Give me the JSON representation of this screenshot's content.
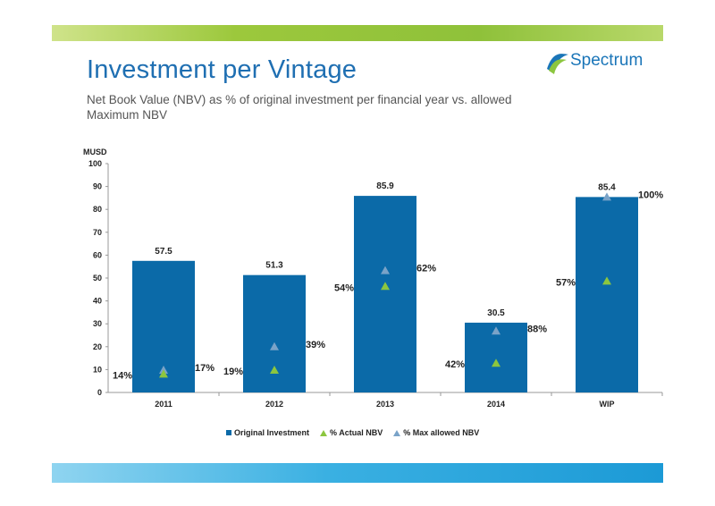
{
  "header": {
    "title": "Investment per Vintage",
    "subtitle": "Net Book Value (NBV) as % of original investment per financial year vs. allowed Maximum NBV",
    "logo_text": "Spectrum"
  },
  "colors": {
    "bar": "#0b6aa8",
    "actual_marker": "#8cc63f",
    "max_marker": "#7aa3c8",
    "title": "#1f6fb2",
    "top_band": "#8fc13a",
    "bottom_band": "#3ab0e2"
  },
  "chart_data": {
    "type": "bar",
    "unit_label": "MUSD",
    "categories": [
      "2011",
      "2012",
      "2013",
      "2014",
      "WIP"
    ],
    "ylim": [
      0,
      100
    ],
    "yticks": [
      0,
      10,
      20,
      30,
      40,
      50,
      60,
      70,
      80,
      90,
      100
    ],
    "grid": false,
    "legend_position": "bottom",
    "series": [
      {
        "name": "Original Investment",
        "type": "bar",
        "values": [
          57.5,
          51.3,
          85.9,
          30.5,
          85.4
        ],
        "labels": [
          "57.5",
          "51.3",
          "85.9",
          "30.5",
          "85.4"
        ]
      },
      {
        "name": "% Actual NBV",
        "type": "marker",
        "percent": [
          14,
          19,
          54,
          42,
          57
        ],
        "labels": [
          "14%",
          "19%",
          "54%",
          "42%",
          "57%"
        ]
      },
      {
        "name": "% Max allowed NBV",
        "type": "marker",
        "percent": [
          17,
          39,
          62,
          88,
          100
        ],
        "labels": [
          "17%",
          "39%",
          "62%",
          "88%",
          "100%"
        ]
      }
    ]
  }
}
